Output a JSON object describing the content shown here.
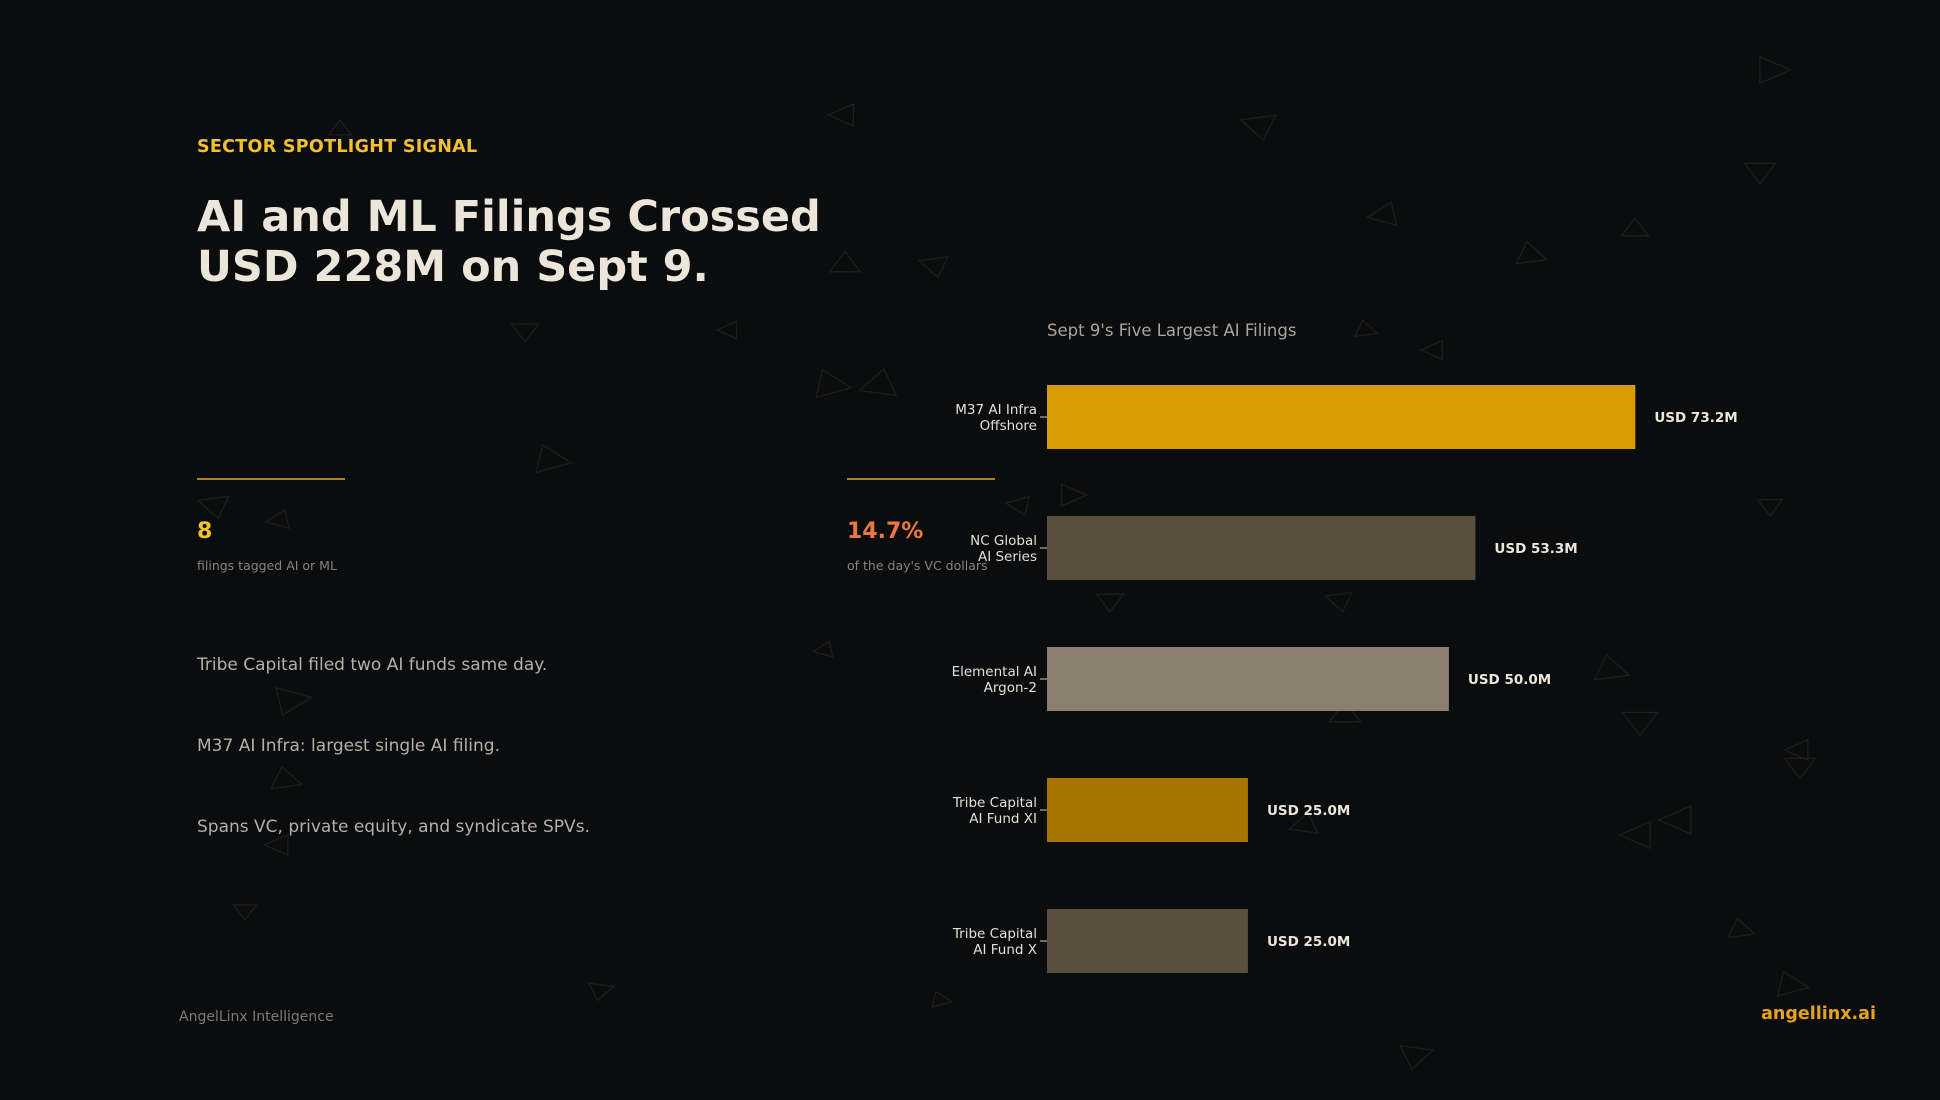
{
  "eyebrow": "SECTOR SPOTLIGHT SIGNAL",
  "headline": "AI and ML Filings Crossed USD 228M on Sept 9.",
  "stats": [
    {
      "value": "8",
      "caption": "filings tagged AI or ML"
    },
    {
      "value": "14.7%",
      "caption": "of the day's VC dollars"
    }
  ],
  "bullets": [
    "Tribe Capital filed two AI funds same day.",
    "M37 AI Infra: largest single AI filing.",
    "Spans VC, private equity, and syndicate SPVs."
  ],
  "footer": {
    "brand": "AngelLinx Intelligence",
    "site": "angellinx.ai"
  },
  "colors": {
    "accent": "#f2c12e",
    "accent2": "#f0773e",
    "background": "#0b0c0e"
  },
  "chart_data": {
    "type": "bar",
    "orientation": "horizontal",
    "title": "Sept 9's Five Largest AI Filings",
    "categories": [
      [
        "M37 AI Infra",
        "Offshore"
      ],
      [
        "NC Global",
        "AI Series"
      ],
      [
        "Elemental AI",
        "Argon-2"
      ],
      [
        "Tribe Capital",
        "AI Fund XI"
      ],
      [
        "Tribe Capital",
        "AI Fund X"
      ]
    ],
    "values": [
      73.2,
      53.3,
      50.0,
      25.0,
      25.0
    ],
    "value_labels": [
      "USD 73.2M",
      "USD 53.3M",
      "USD 50.0M",
      "USD 25.0M",
      "USD 25.0M"
    ],
    "colors": [
      "#d89b00",
      "#594f3e",
      "#8b7f6f",
      "#a67600",
      "#594f3e"
    ],
    "unit": "USD M",
    "xlim": [
      0,
      80
    ],
    "xlabel": "",
    "ylabel": "",
    "grid": false,
    "axis_visible": false
  }
}
